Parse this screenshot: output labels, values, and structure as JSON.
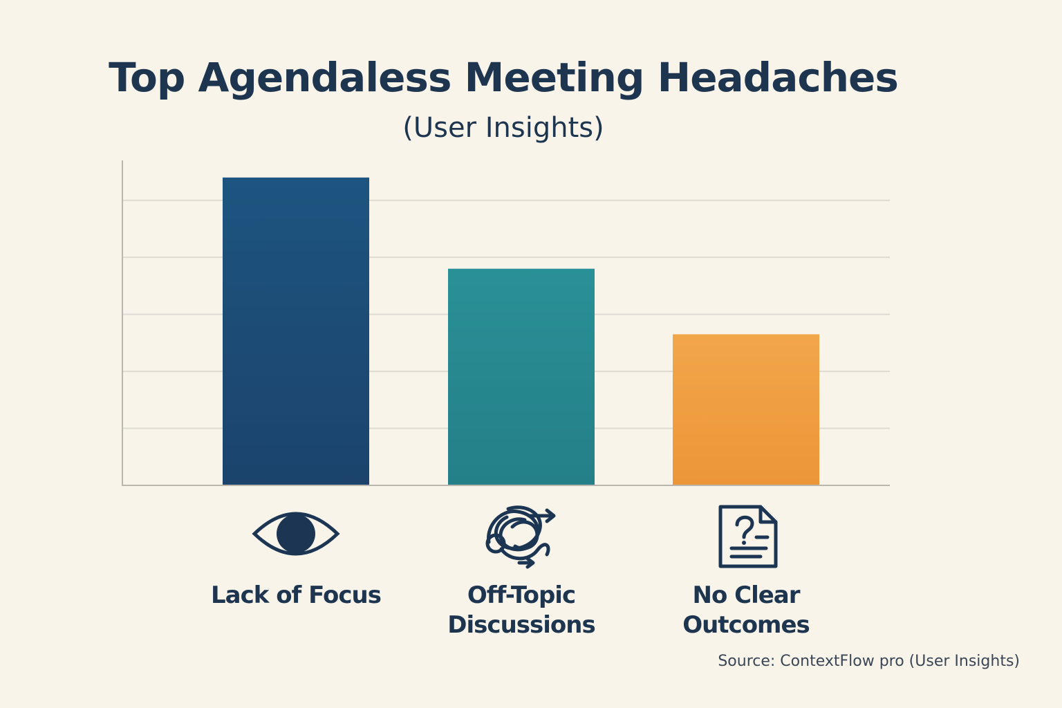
{
  "chart_data": {
    "type": "bar",
    "title": "Top Agendaless Meeting Headaches",
    "subtitle": "(User Insights)",
    "categories": [
      "Lack of Focus",
      "Off-Topic Discussions",
      "No Clear Outcomes"
    ],
    "category_lines": [
      [
        "Lack of Focus"
      ],
      [
        "Off-Topic",
        "Discussions"
      ],
      [
        "No Clear",
        "Outcomes"
      ]
    ],
    "icons": [
      "eye-icon",
      "tangled-arrows-icon",
      "question-document-icon"
    ],
    "values": [
      5.4,
      3.8,
      2.65
    ],
    "colors": [
      "#1d4f7b",
      "#2a8f95",
      "#f0a040"
    ],
    "ylim": [
      0,
      5.7
    ],
    "grid_values": [
      1,
      2,
      3,
      4,
      5
    ],
    "grid": true,
    "xlabel": "",
    "ylabel": "",
    "source": "Source: ContextFlow pro (User Insights)"
  }
}
